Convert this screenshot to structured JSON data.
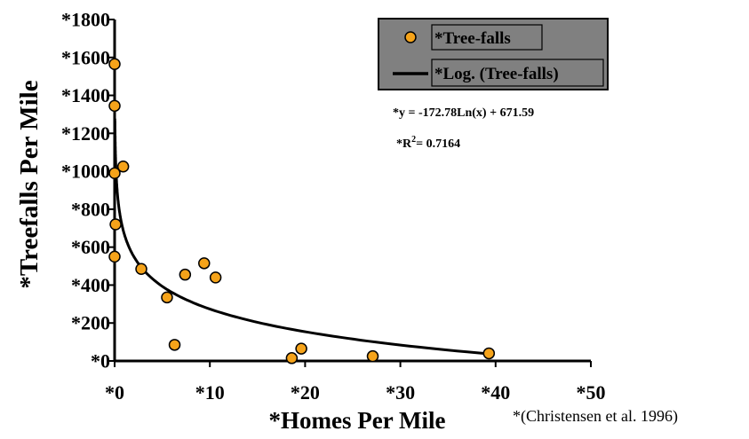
{
  "colors": {
    "point_fill": "#f5a31a",
    "point_stroke": "#000000",
    "curve": "#000000",
    "legend_bg": "#808080"
  },
  "chart_data": {
    "type": "scatter",
    "xlabel": "*Homes Per Mile",
    "ylabel": "*Treefalls Per Mile",
    "xlim": [
      0,
      50
    ],
    "ylim": [
      0,
      1800
    ],
    "x_ticks": [
      0,
      10,
      20,
      30,
      40,
      50
    ],
    "y_ticks": [
      0,
      200,
      400,
      600,
      800,
      1000,
      1200,
      1400,
      1600,
      1800
    ],
    "x_tick_labels": [
      "*0",
      "*10",
      "*20",
      "*30",
      "*40",
      "*50"
    ],
    "y_tick_labels": [
      "*0",
      "*200",
      "*400",
      "*600",
      "*800",
      "*1000",
      "*1200",
      "*1400",
      "*1600",
      "*1800"
    ],
    "series": [
      {
        "name": "*Tree-falls",
        "kind": "points",
        "x": [
          0,
          0,
          0,
          0.1,
          0.9,
          0,
          2.8,
          5.5,
          6.3,
          7.4,
          9.4,
          10.6,
          18.6,
          19.6,
          27.1,
          39.3
        ],
        "y": [
          1565,
          1345,
          990,
          720,
          1025,
          550,
          485,
          335,
          85,
          455,
          515,
          440,
          15,
          65,
          25,
          40
        ]
      },
      {
        "name": "*Log. (Tree-falls)",
        "kind": "trendline",
        "model": "log",
        "a": -172.78,
        "b": 671.59,
        "x_range": [
          0.03,
          39.3
        ]
      }
    ],
    "annotations": {
      "equation": "*y = -172.78Ln(x) + 671.59",
      "r2_prefix": "*R",
      "r2_sup": "2",
      "r2_value": "= 0.7164",
      "source": "*(Christensen et al. 1996)"
    },
    "legend_position": "top-right"
  }
}
